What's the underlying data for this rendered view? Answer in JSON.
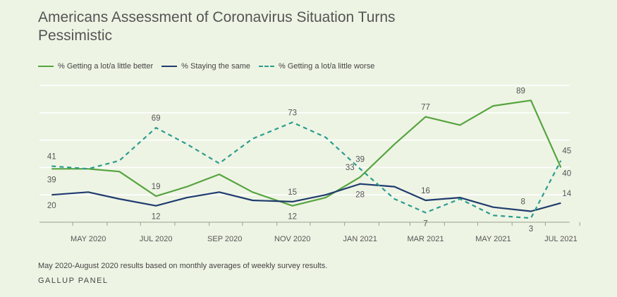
{
  "chart_data": {
    "type": "line",
    "title": "Americans Assessment of Coronavirus Situation Turns Pessimistic",
    "x_tick_labels": [
      "MAY 2020",
      "JUL 2020",
      "SEP 2020",
      "NOV 2020",
      "JAN 2021",
      "MAR 2021",
      "MAY 2021",
      "JUL 2021"
    ],
    "ylim": [
      0,
      100
    ],
    "grid": true,
    "legend_position": "top-left",
    "series": [
      {
        "name": "% Getting a lot/a little better",
        "color": "#56a43f",
        "style": "solid",
        "values": [
          {
            "x": "2020-04-12",
            "y": 39
          },
          {
            "x": "2020-05-15",
            "y": 39
          },
          {
            "x": "2020-06-12",
            "y": 37
          },
          {
            "x": "2020-07-15",
            "y": 19
          },
          {
            "x": "2020-08-12",
            "y": 26
          },
          {
            "x": "2020-09-10",
            "y": 35
          },
          {
            "x": "2020-10-10",
            "y": 22
          },
          {
            "x": "2020-11-15",
            "y": 12
          },
          {
            "x": "2020-12-15",
            "y": 18
          },
          {
            "x": "2021-01-15",
            "y": 33
          },
          {
            "x": "2021-02-15",
            "y": 57
          },
          {
            "x": "2021-03-15",
            "y": 77
          },
          {
            "x": "2021-04-15",
            "y": 71
          },
          {
            "x": "2021-05-15",
            "y": 85
          },
          {
            "x": "2021-06-18",
            "y": 89
          },
          {
            "x": "2021-07-15",
            "y": 40
          }
        ]
      },
      {
        "name": "% Staying the same",
        "color": "#1f3c6e",
        "style": "solid",
        "values": [
          {
            "x": "2020-04-12",
            "y": 20
          },
          {
            "x": "2020-05-15",
            "y": 22
          },
          {
            "x": "2020-06-12",
            "y": 17
          },
          {
            "x": "2020-07-15",
            "y": 12
          },
          {
            "x": "2020-08-12",
            "y": 18
          },
          {
            "x": "2020-09-10",
            "y": 22
          },
          {
            "x": "2020-10-10",
            "y": 16
          },
          {
            "x": "2020-11-15",
            "y": 15
          },
          {
            "x": "2020-12-15",
            "y": 20
          },
          {
            "x": "2021-01-15",
            "y": 28
          },
          {
            "x": "2021-02-15",
            "y": 26
          },
          {
            "x": "2021-03-15",
            "y": 16
          },
          {
            "x": "2021-04-15",
            "y": 18
          },
          {
            "x": "2021-05-15",
            "y": 11
          },
          {
            "x": "2021-06-18",
            "y": 8
          },
          {
            "x": "2021-07-15",
            "y": 14
          }
        ]
      },
      {
        "name": "% Getting a lot/a little worse",
        "color": "#2a9d8f",
        "style": "dashed",
        "values": [
          {
            "x": "2020-04-12",
            "y": 41
          },
          {
            "x": "2020-05-15",
            "y": 39
          },
          {
            "x": "2020-06-12",
            "y": 45
          },
          {
            "x": "2020-07-15",
            "y": 69
          },
          {
            "x": "2020-08-12",
            "y": 57
          },
          {
            "x": "2020-09-10",
            "y": 43
          },
          {
            "x": "2020-10-10",
            "y": 61
          },
          {
            "x": "2020-11-15",
            "y": 73
          },
          {
            "x": "2020-12-15",
            "y": 62
          },
          {
            "x": "2021-01-15",
            "y": 39
          },
          {
            "x": "2021-02-15",
            "y": 17
          },
          {
            "x": "2021-03-15",
            "y": 7
          },
          {
            "x": "2021-04-15",
            "y": 17
          },
          {
            "x": "2021-05-15",
            "y": 5
          },
          {
            "x": "2021-06-18",
            "y": 3
          },
          {
            "x": "2021-07-15",
            "y": 45
          }
        ]
      }
    ],
    "data_labels": [
      {
        "series": 0,
        "point": 0,
        "text": "39",
        "pos": "below"
      },
      {
        "series": 0,
        "point": 3,
        "text": "19",
        "pos": "above"
      },
      {
        "series": 0,
        "point": 7,
        "text": "12",
        "pos": "below"
      },
      {
        "series": 0,
        "point": 9,
        "text": "33",
        "pos": "above-left"
      },
      {
        "series": 0,
        "point": 11,
        "text": "77",
        "pos": "above"
      },
      {
        "series": 0,
        "point": 14,
        "text": "89",
        "pos": "above-left"
      },
      {
        "series": 0,
        "point": 15,
        "text": "40",
        "pos": "below-right"
      },
      {
        "series": 1,
        "point": 0,
        "text": "20",
        "pos": "below"
      },
      {
        "series": 1,
        "point": 3,
        "text": "12",
        "pos": "below"
      },
      {
        "series": 1,
        "point": 7,
        "text": "15",
        "pos": "above"
      },
      {
        "series": 1,
        "point": 9,
        "text": "28",
        "pos": "below"
      },
      {
        "series": 1,
        "point": 11,
        "text": "16",
        "pos": "above"
      },
      {
        "series": 1,
        "point": 14,
        "text": "8",
        "pos": "above-left"
      },
      {
        "series": 1,
        "point": 15,
        "text": "14",
        "pos": "above-right"
      },
      {
        "series": 2,
        "point": 0,
        "text": "41",
        "pos": "above"
      },
      {
        "series": 2,
        "point": 3,
        "text": "69",
        "pos": "above"
      },
      {
        "series": 2,
        "point": 7,
        "text": "73",
        "pos": "above"
      },
      {
        "series": 2,
        "point": 9,
        "text": "39",
        "pos": "above"
      },
      {
        "series": 2,
        "point": 11,
        "text": "7",
        "pos": "below"
      },
      {
        "series": 2,
        "point": 14,
        "text": "3",
        "pos": "below"
      },
      {
        "series": 2,
        "point": 15,
        "text": "45",
        "pos": "above-right"
      }
    ]
  },
  "footnote": "May 2020-August 2020 results based on monthly averages of weekly survey results.",
  "source": "GALLUP PANEL"
}
